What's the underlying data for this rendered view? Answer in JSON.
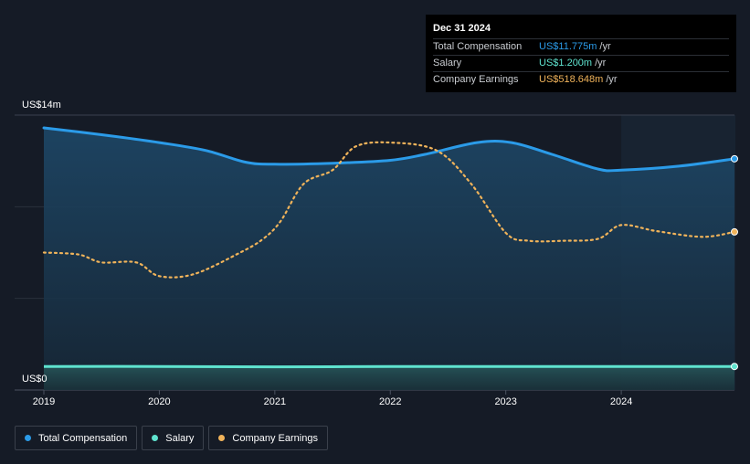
{
  "tooltip": {
    "date": "Dec 31 2024",
    "rows": [
      {
        "label": "Total Compensation",
        "value": "US$11.775m",
        "unit": "/yr",
        "color": "#2b9be8"
      },
      {
        "label": "Salary",
        "value": "US$1.200m",
        "unit": "/yr",
        "color": "#5fe3cf"
      },
      {
        "label": "Company Earnings",
        "value": "US$518.648m",
        "unit": "/yr",
        "color": "#f0b35a"
      }
    ]
  },
  "legend": [
    {
      "label": "Total Compensation",
      "color": "#2b9be8"
    },
    {
      "label": "Salary",
      "color": "#5fe3cf"
    },
    {
      "label": "Company Earnings",
      "color": "#f0b35a"
    }
  ],
  "chart_data": {
    "type": "line",
    "y_axis_labels": {
      "top": "US$14m",
      "bottom": "US$0"
    },
    "ylim": [
      0,
      14
    ],
    "xlim": [
      2019,
      2024.98
    ],
    "x_ticks": [
      {
        "value": 2019,
        "label": "2019"
      },
      {
        "value": 2020,
        "label": "2020"
      },
      {
        "value": 2021,
        "label": "2021"
      },
      {
        "value": 2022,
        "label": "2022"
      },
      {
        "value": 2023,
        "label": "2023"
      },
      {
        "value": 2024,
        "label": "2024"
      }
    ],
    "highlight_start": 2024,
    "series": [
      {
        "name": "Total Compensation",
        "color": "#2b9be8",
        "style": "solid",
        "points": [
          [
            2019,
            13.35
          ],
          [
            2019.5,
            13.0
          ],
          [
            2020,
            12.6
          ],
          [
            2020.4,
            12.2
          ],
          [
            2020.75,
            11.6
          ],
          [
            2021,
            11.5
          ],
          [
            2021.5,
            11.55
          ],
          [
            2022,
            11.7
          ],
          [
            2022.3,
            12.0
          ],
          [
            2022.75,
            12.6
          ],
          [
            2023.05,
            12.6
          ],
          [
            2023.4,
            12.0
          ],
          [
            2023.8,
            11.25
          ],
          [
            2024,
            11.2
          ],
          [
            2024.5,
            11.4
          ],
          [
            2024.98,
            11.775
          ]
        ]
      },
      {
        "name": "Company Earnings",
        "color": "#f0b35a",
        "style": "dotted",
        "scale_note": "plotted on shared axis",
        "points": [
          [
            2019,
            7.0
          ],
          [
            2019.3,
            6.9
          ],
          [
            2019.5,
            6.5
          ],
          [
            2019.8,
            6.5
          ],
          [
            2020,
            5.8
          ],
          [
            2020.3,
            5.9
          ],
          [
            2020.7,
            7.0
          ],
          [
            2020.9,
            7.7
          ],
          [
            2021.05,
            8.6
          ],
          [
            2021.25,
            10.5
          ],
          [
            2021.5,
            11.2
          ],
          [
            2021.7,
            12.4
          ],
          [
            2022,
            12.6
          ],
          [
            2022.4,
            12.2
          ],
          [
            2022.7,
            10.5
          ],
          [
            2023,
            8.0
          ],
          [
            2023.2,
            7.6
          ],
          [
            2023.5,
            7.6
          ],
          [
            2023.8,
            7.7
          ],
          [
            2024,
            8.4
          ],
          [
            2024.3,
            8.1
          ],
          [
            2024.7,
            7.8
          ],
          [
            2024.98,
            8.05
          ]
        ]
      },
      {
        "name": "Salary",
        "color": "#5fe3cf",
        "style": "solid",
        "points": [
          [
            2019,
            1.2
          ],
          [
            2020,
            1.2
          ],
          [
            2021,
            1.18
          ],
          [
            2022,
            1.2
          ],
          [
            2023,
            1.2
          ],
          [
            2024,
            1.2
          ],
          [
            2024.98,
            1.2
          ]
        ]
      }
    ]
  }
}
